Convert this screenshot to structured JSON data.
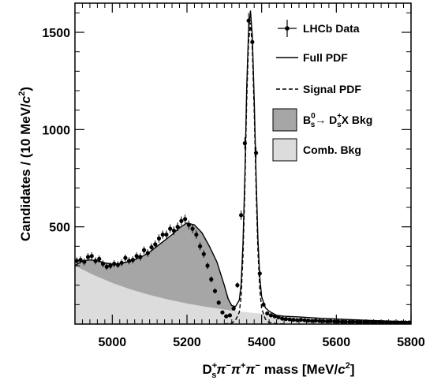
{
  "chart_data": {
    "type": "line",
    "xlabel": "Ds+π−π+π− mass [MeV/c2]",
    "xlabel_parts": {
      "main": "D",
      "sup": "+",
      "sub": "s",
      "rest": "π",
      "sup1": "−",
      "mid1": "π",
      "sup2": "+",
      "mid2": "π",
      "sup3": "−",
      "tail": " mass [MeV/",
      "c": "c",
      "sup4": "2",
      "end": "]"
    },
    "ylabel": "Candidates / (10 MeV/c2)",
    "ylabel_parts": {
      "main": "Candidates / (10 MeV/",
      "c": "c",
      "sup": "2",
      "end": ")"
    },
    "xlim": [
      4900,
      5800
    ],
    "ylim": [
      0,
      1650
    ],
    "xticks": [
      5000,
      5200,
      5400,
      5600,
      5800
    ],
    "yticks": [
      500,
      1000,
      1500
    ],
    "grid": false,
    "legend_position": "top-right",
    "legend": [
      {
        "key": "data",
        "label": "LHCb Data"
      },
      {
        "key": "full",
        "label": "Full PDF"
      },
      {
        "key": "signal",
        "label": "Signal PDF"
      },
      {
        "key": "bs_bkg",
        "label_parts": {
          "a": "B",
          "a_sup": "0",
          "a_sub": "s",
          "arrow": "→ ",
          "b": "D",
          "b_sup": "+",
          "b_sub": "s",
          "rest": "X Bkg"
        }
      },
      {
        "key": "comb",
        "label": "Comb. Bkg"
      }
    ],
    "colors": {
      "bs_bkg": "#a6a6a6",
      "comb": "#dcdcdc",
      "line": "#000000"
    },
    "series": [
      {
        "key": "data",
        "x": [
          4905,
          4915,
          4925,
          4935,
          4945,
          4955,
          4965,
          4975,
          4985,
          4995,
          5005,
          5015,
          5025,
          5035,
          5045,
          5055,
          5065,
          5075,
          5085,
          5095,
          5105,
          5115,
          5125,
          5135,
          5145,
          5155,
          5165,
          5175,
          5185,
          5195,
          5205,
          5215,
          5225,
          5235,
          5245,
          5255,
          5265,
          5275,
          5285,
          5295,
          5305,
          5315,
          5325,
          5335,
          5345,
          5355,
          5365,
          5375,
          5385,
          5395,
          5405,
          5415,
          5425,
          5435,
          5445,
          5455,
          5465,
          5475,
          5485,
          5495,
          5505,
          5515,
          5525,
          5535,
          5545,
          5555,
          5565,
          5575,
          5585,
          5595,
          5605,
          5615,
          5625,
          5635,
          5645,
          5655,
          5665,
          5675,
          5685,
          5695,
          5705,
          5715,
          5725,
          5735,
          5745,
          5755,
          5765,
          5775,
          5785,
          5795
        ],
        "y": [
          325,
          330,
          320,
          345,
          350,
          325,
          335,
          310,
          295,
          300,
          310,
          305,
          315,
          340,
          325,
          330,
          350,
          345,
          380,
          365,
          395,
          410,
          440,
          460,
          460,
          490,
          480,
          500,
          530,
          540,
          510,
          490,
          460,
          400,
          360,
          300,
          230,
          170,
          110,
          60,
          40,
          45,
          80,
          200,
          560,
          930,
          1560,
          1450,
          880,
          260,
          100,
          55,
          45,
          40,
          35,
          28,
          26,
          24,
          22,
          20,
          22,
          20,
          18,
          16,
          18,
          16,
          15,
          14,
          15,
          13,
          13,
          12,
          12,
          11,
          12,
          11,
          10,
          11,
          10,
          10,
          9,
          10,
          9,
          9,
          8,
          8,
          8,
          8,
          8,
          8
        ],
        "err": [
          18,
          18,
          18,
          19,
          19,
          18,
          18,
          18,
          17,
          17,
          18,
          17,
          18,
          18,
          18,
          18,
          19,
          19,
          19,
          19,
          20,
          20,
          21,
          21,
          21,
          22,
          22,
          22,
          23,
          23,
          23,
          22,
          21,
          20,
          19,
          17,
          15,
          13,
          11,
          8,
          7,
          7,
          9,
          14,
          24,
          31,
          40,
          38,
          30,
          16,
          10,
          7,
          7,
          6,
          6,
          5,
          5,
          5,
          5,
          5,
          5,
          5,
          4,
          4,
          4,
          4,
          4,
          4,
          4,
          4,
          4,
          4,
          4,
          4,
          4,
          4,
          4,
          4,
          4,
          4,
          4,
          4,
          4,
          4,
          4,
          4,
          4,
          4,
          4,
          4
        ]
      }
    ],
    "curves": {
      "comb": {
        "x": [
          4900,
          4950,
          5000,
          5050,
          5100,
          5150,
          5200,
          5250,
          5300,
          5350,
          5400,
          5450,
          5500,
          5550,
          5600,
          5650,
          5700,
          5750,
          5800
        ],
        "y": [
          300,
          252,
          212,
          178,
          150,
          126,
          106,
          89,
          75,
          63,
          53,
          44,
          37,
          31,
          26,
          22,
          18,
          15,
          12
        ]
      },
      "bs_bkg_total": {
        "x": [
          4900,
          4920,
          4940,
          4960,
          4980,
          5000,
          5020,
          5040,
          5060,
          5080,
          5100,
          5120,
          5140,
          5160,
          5180,
          5200,
          5220,
          5240,
          5260,
          5280,
          5300,
          5320,
          5330,
          5340
        ],
        "y": [
          300,
          325,
          330,
          325,
          315,
          308,
          310,
          320,
          332,
          348,
          370,
          400,
          430,
          460,
          495,
          520,
          510,
          470,
          400,
          320,
          200,
          90,
          70,
          63
        ]
      },
      "signal": {
        "x": [
          5300,
          5320,
          5330,
          5340,
          5345,
          5350,
          5355,
          5360,
          5365,
          5370,
          5375,
          5380,
          5385,
          5390,
          5395,
          5400,
          5410,
          5420,
          5440,
          5460
        ],
        "y": [
          0,
          5,
          20,
          60,
          140,
          350,
          700,
          1150,
          1450,
          1550,
          1420,
          1100,
          700,
          380,
          180,
          80,
          25,
          8,
          2,
          0
        ]
      },
      "full": {
        "x": [
          4900,
          4920,
          4940,
          4960,
          4980,
          5000,
          5020,
          5040,
          5060,
          5080,
          5100,
          5120,
          5140,
          5160,
          5180,
          5200,
          5220,
          5240,
          5260,
          5280,
          5300,
          5310,
          5320,
          5330,
          5340,
          5345,
          5350,
          5355,
          5360,
          5365,
          5370,
          5375,
          5380,
          5385,
          5390,
          5395,
          5400,
          5410,
          5420,
          5440,
          5460,
          5500,
          5550,
          5600,
          5650,
          5700,
          5750,
          5800
        ],
        "y": [
          300,
          325,
          330,
          325,
          315,
          308,
          310,
          320,
          332,
          348,
          370,
          400,
          430,
          460,
          495,
          520,
          510,
          470,
          400,
          320,
          200,
          130,
          95,
          90,
          123,
          203,
          413,
          763,
          1213,
          1512,
          1612,
          1481,
          1161,
          761,
          441,
          240,
          140,
          84,
          66,
          45,
          40,
          37,
          31,
          26,
          22,
          18,
          15,
          12
        ]
      }
    }
  }
}
